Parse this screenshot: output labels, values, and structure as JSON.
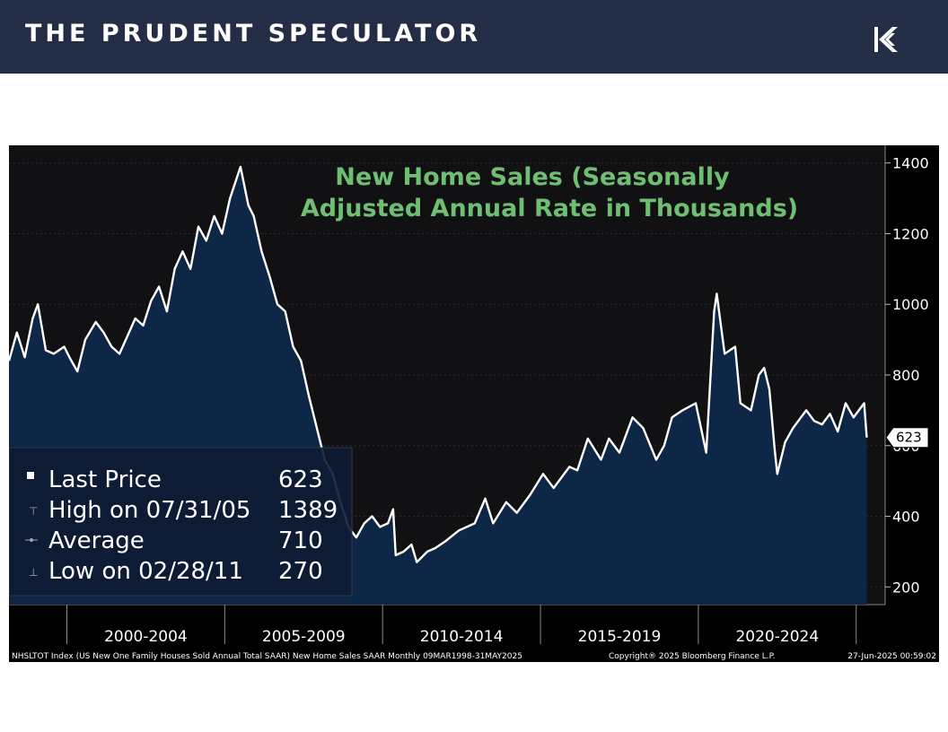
{
  "header": {
    "brand": "THE PRUDENT SPECULATOR",
    "logo_icon": "stylized-k-logo-icon"
  },
  "colors": {
    "header_bg": "#232d45",
    "chart_bg": "#111113",
    "area_fill": "#0f2747",
    "line": "#ffffff",
    "title": "#6fbf73"
  },
  "chart_data": {
    "type": "area",
    "title_lines": [
      "New Home Sales (Seasonally",
      "Adjusted Annual Rate in Thousands)"
    ],
    "ylim": [
      150,
      1450
    ],
    "y_ticks": [
      200,
      400,
      600,
      800,
      1000,
      1200,
      1400
    ],
    "y_tick_labels": [
      "200",
      "400",
      "600",
      "800",
      "1000",
      "1200",
      "1400"
    ],
    "x_range": [
      "1998-03",
      "2025-12"
    ],
    "x_period_labels": [
      "2000-2004",
      "2005-2009",
      "2010-2014",
      "2015-2019",
      "2020-2024"
    ],
    "x_period_centers": [
      "2002-07",
      "2007-07",
      "2012-07",
      "2017-07",
      "2022-07"
    ],
    "x_dividers": [
      "2000-01",
      "2005-01",
      "2010-01",
      "2015-01",
      "2020-01",
      "2025-01"
    ],
    "last_value_label": "623",
    "stats": [
      {
        "label": "Last Price",
        "value": "623"
      },
      {
        "label": "High on 07/31/05",
        "value": "1389"
      },
      {
        "label": "Average",
        "value": "710"
      },
      {
        "label": "Low on 02/28/11",
        "value": "270"
      }
    ],
    "series": [
      {
        "values": [
          [
            "1998-03",
            840
          ],
          [
            "1998-06",
            920
          ],
          [
            "1998-09",
            850
          ],
          [
            "1998-12",
            960
          ],
          [
            "1999-02",
            1000
          ],
          [
            "1999-05",
            870
          ],
          [
            "1999-08",
            860
          ],
          [
            "1999-12",
            880
          ],
          [
            "2000-02",
            850
          ],
          [
            "2000-05",
            810
          ],
          [
            "2000-08",
            900
          ],
          [
            "2000-12",
            950
          ],
          [
            "2001-03",
            920
          ],
          [
            "2001-06",
            880
          ],
          [
            "2001-09",
            860
          ],
          [
            "2001-12",
            910
          ],
          [
            "2002-03",
            960
          ],
          [
            "2002-06",
            940
          ],
          [
            "2002-09",
            1010
          ],
          [
            "2002-12",
            1050
          ],
          [
            "2003-03",
            980
          ],
          [
            "2003-06",
            1100
          ],
          [
            "2003-09",
            1150
          ],
          [
            "2003-12",
            1100
          ],
          [
            "2004-03",
            1220
          ],
          [
            "2004-06",
            1180
          ],
          [
            "2004-09",
            1250
          ],
          [
            "2004-12",
            1200
          ],
          [
            "2005-03",
            1300
          ],
          [
            "2005-07",
            1389
          ],
          [
            "2005-10",
            1280
          ],
          [
            "2005-12",
            1250
          ],
          [
            "2006-03",
            1150
          ],
          [
            "2006-06",
            1080
          ],
          [
            "2006-09",
            1000
          ],
          [
            "2006-12",
            980
          ],
          [
            "2007-03",
            880
          ],
          [
            "2007-06",
            840
          ],
          [
            "2007-09",
            740
          ],
          [
            "2007-12",
            650
          ],
          [
            "2008-03",
            560
          ],
          [
            "2008-06",
            520
          ],
          [
            "2008-09",
            440
          ],
          [
            "2008-12",
            370
          ],
          [
            "2009-03",
            340
          ],
          [
            "2009-06",
            380
          ],
          [
            "2009-09",
            400
          ],
          [
            "2009-12",
            370
          ],
          [
            "2010-03",
            380
          ],
          [
            "2010-05",
            420
          ],
          [
            "2010-06",
            290
          ],
          [
            "2010-09",
            300
          ],
          [
            "2010-12",
            320
          ],
          [
            "2011-02",
            270
          ],
          [
            "2011-06",
            300
          ],
          [
            "2011-09",
            310
          ],
          [
            "2012-01",
            330
          ],
          [
            "2012-06",
            360
          ],
          [
            "2012-12",
            380
          ],
          [
            "2013-04",
            450
          ],
          [
            "2013-07",
            380
          ],
          [
            "2013-12",
            440
          ],
          [
            "2014-04",
            410
          ],
          [
            "2014-09",
            460
          ],
          [
            "2015-02",
            520
          ],
          [
            "2015-06",
            480
          ],
          [
            "2015-12",
            540
          ],
          [
            "2016-03",
            530
          ],
          [
            "2016-07",
            620
          ],
          [
            "2016-12",
            560
          ],
          [
            "2017-03",
            620
          ],
          [
            "2017-07",
            580
          ],
          [
            "2017-12",
            680
          ],
          [
            "2018-04",
            650
          ],
          [
            "2018-09",
            560
          ],
          [
            "2018-12",
            600
          ],
          [
            "2019-03",
            680
          ],
          [
            "2019-07",
            700
          ],
          [
            "2019-12",
            720
          ],
          [
            "2020-04",
            580
          ],
          [
            "2020-07",
            980
          ],
          [
            "2020-08",
            1030
          ],
          [
            "2020-11",
            860
          ],
          [
            "2021-03",
            880
          ],
          [
            "2021-05",
            720
          ],
          [
            "2021-09",
            700
          ],
          [
            "2021-12",
            800
          ],
          [
            "2022-02",
            820
          ],
          [
            "2022-04",
            760
          ],
          [
            "2022-06",
            590
          ],
          [
            "2022-07",
            520
          ],
          [
            "2022-10",
            610
          ],
          [
            "2023-01",
            650
          ],
          [
            "2023-03",
            670
          ],
          [
            "2023-06",
            700
          ],
          [
            "2023-09",
            670
          ],
          [
            "2023-12",
            660
          ],
          [
            "2024-03",
            690
          ],
          [
            "2024-06",
            640
          ],
          [
            "2024-09",
            720
          ],
          [
            "2024-12",
            680
          ],
          [
            "2025-02",
            700
          ],
          [
            "2025-04",
            720
          ],
          [
            "2025-05",
            623
          ]
        ]
      }
    ],
    "footer_left": "NHSLTOT Index (US New One Family Houses Sold Annual Total SAAR) New Home Sales SAAR  Monthly 09MAR1998-31MAY2025",
    "footer_center": "Copyright® 2025 Bloomberg Finance L.P.",
    "footer_right": "27-Jun-2025 00:59:02"
  }
}
